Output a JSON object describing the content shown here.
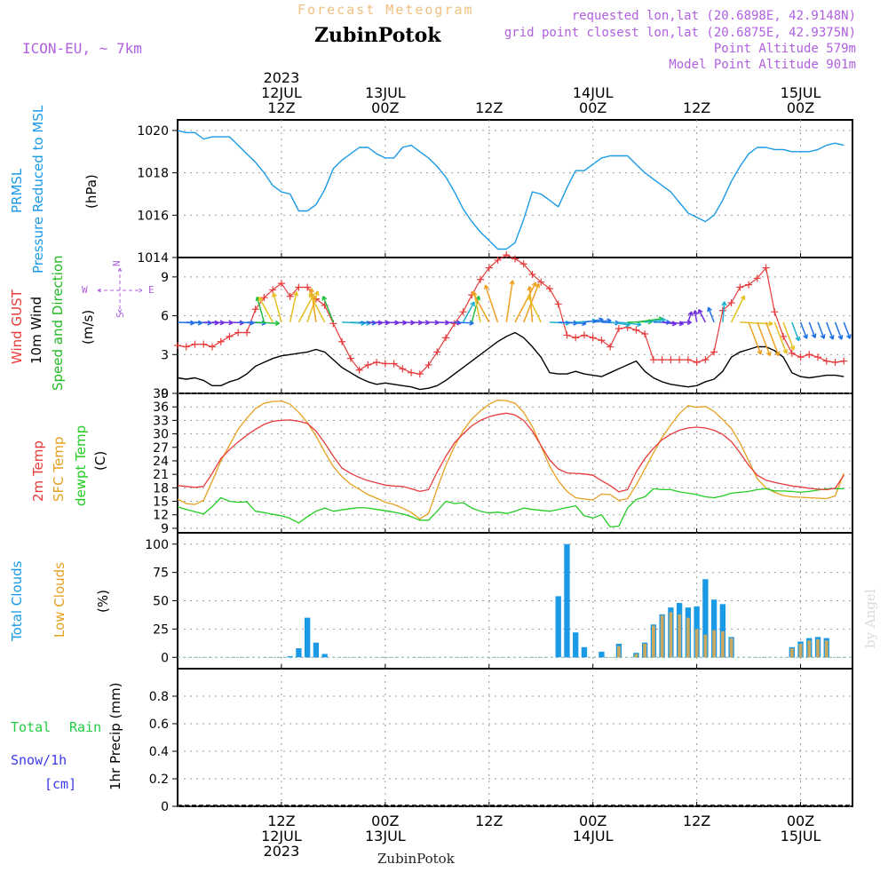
{
  "header": {
    "forecast_title": "Forecast Meteogram",
    "station": "ZubinPotok",
    "model": "ICON-EU, ~ 7km",
    "requested": "requested lon,lat (20.6898E, 42.9148N)",
    "closest": "grid point closest lon,lat (20.6875E, 42.9375N)",
    "point_alt": "Point Altitude 579m",
    "model_alt": "Model Point Altitude 901m",
    "credit": "by Angel",
    "footer_station": "ZubinPotok"
  },
  "time_axis": {
    "start_hour": 0,
    "end_hour": 78,
    "top_labels": [
      {
        "hour": 12,
        "lines": [
          "2023",
          "12JUL",
          "12Z"
        ]
      },
      {
        "hour": 24,
        "lines": [
          "13JUL",
          "00Z"
        ]
      },
      {
        "hour": 36,
        "lines": [
          "12Z"
        ]
      },
      {
        "hour": 48,
        "lines": [
          "14JUL",
          "00Z"
        ]
      },
      {
        "hour": 60,
        "lines": [
          "12Z"
        ]
      },
      {
        "hour": 72,
        "lines": [
          "15JUL",
          "00Z"
        ]
      }
    ],
    "bottom_labels": [
      {
        "hour": 12,
        "lines": [
          "12Z",
          "12JUL",
          "2023"
        ]
      },
      {
        "hour": 24,
        "lines": [
          "00Z",
          "13JUL"
        ]
      },
      {
        "hour": 36,
        "lines": [
          "12Z"
        ]
      },
      {
        "hour": 48,
        "lines": [
          "00Z",
          "14JUL"
        ]
      },
      {
        "hour": 60,
        "lines": [
          "12Z"
        ]
      },
      {
        "hour": 72,
        "lines": [
          "00Z",
          "15JUL"
        ]
      }
    ]
  },
  "colors": {
    "pressure": "#1a9ae6",
    "gust": "#e83a3a",
    "wind": "#000000",
    "direction": "#22bb22",
    "temp": "#e83a3a",
    "sfc_temp": "#e6a020",
    "dewpt": "#22cc22",
    "total_clouds": "#1a9ae6",
    "low_clouds": "#c9a860",
    "rain": "#22cc44",
    "snow": "#3a3ae6",
    "label_purple": "#b060e0",
    "title_orange": "#f0c080"
  },
  "chart_data": [
    {
      "type": "line",
      "name": "pressure",
      "labels": [
        "PRMSL",
        "Pressure Reduced to MSL",
        "(hPa)"
      ],
      "ylim": [
        1014,
        1020.5
      ],
      "yticks": [
        1014,
        1016,
        1018,
        1020
      ],
      "x": [
        0,
        1,
        2,
        3,
        4,
        5,
        6,
        7,
        8,
        9,
        10,
        11,
        12,
        13,
        14,
        15,
        16,
        17,
        18,
        19,
        20,
        21,
        22,
        23,
        24,
        25,
        26,
        27,
        28,
        29,
        30,
        31,
        32,
        33,
        34,
        35,
        36,
        37,
        38,
        39,
        40,
        41,
        42,
        43,
        44,
        45,
        46,
        47,
        48,
        49,
        50,
        51,
        52,
        53,
        54,
        55,
        56,
        57,
        58,
        59,
        60,
        61,
        62,
        63,
        64,
        65,
        66,
        67,
        68,
        69,
        70,
        71,
        72,
        73,
        74,
        75,
        76,
        77
      ],
      "values": [
        1020,
        1019.9,
        1019.9,
        1019.6,
        1019.7,
        1019.7,
        1019.7,
        1019.3,
        1018.9,
        1018.5,
        1018,
        1017.4,
        1017.1,
        1017,
        1016.2,
        1016.2,
        1016.5,
        1017.2,
        1018.2,
        1018.6,
        1018.9,
        1019.2,
        1019.2,
        1018.9,
        1018.7,
        1018.7,
        1019.2,
        1019.3,
        1019,
        1018.7,
        1018.3,
        1017.8,
        1017.1,
        1016.3,
        1015.7,
        1015.2,
        1014.8,
        1014.4,
        1014.4,
        1014.7,
        1015.8,
        1017.1,
        1017,
        1016.7,
        1016.4,
        1017.3,
        1018.1,
        1018.1,
        1018.4,
        1018.7,
        1018.8,
        1018.8,
        1018.8,
        1018.4,
        1018,
        1017.7,
        1017.4,
        1017.1,
        1016.6,
        1016.1,
        1015.9,
        1015.7,
        1016,
        1016.7,
        1017.6,
        1018.3,
        1018.9,
        1019.2,
        1019.2,
        1019.1,
        1019.1,
        1019,
        1019,
        1019,
        1019.1,
        1019.3,
        1019.4,
        1019.3
      ]
    },
    {
      "type": "line",
      "name": "wind",
      "labels": [
        "Wind GUST",
        "10m Wind",
        "Speed and Direction",
        "(m/s)"
      ],
      "compass": [
        "N",
        "S",
        "W",
        "E"
      ],
      "ylim": [
        0,
        10.5
      ],
      "yticks": [
        0,
        3,
        6,
        9
      ],
      "x": [
        0,
        1,
        2,
        3,
        4,
        5,
        6,
        7,
        8,
        9,
        10,
        11,
        12,
        13,
        14,
        15,
        16,
        17,
        18,
        19,
        20,
        21,
        22,
        23,
        24,
        25,
        26,
        27,
        28,
        29,
        30,
        31,
        32,
        33,
        34,
        35,
        36,
        37,
        38,
        39,
        40,
        41,
        42,
        43,
        44,
        45,
        46,
        47,
        48,
        49,
        50,
        51,
        52,
        53,
        54,
        55,
        56,
        57,
        58,
        59,
        60,
        61,
        62,
        63,
        64,
        65,
        66,
        67,
        68,
        69,
        70,
        71,
        72,
        73,
        74,
        75,
        76,
        77
      ],
      "series": [
        {
          "name": "Wind GUST",
          "values": [
            3.7,
            3.6,
            3.8,
            3.8,
            3.6,
            4,
            4.4,
            4.7,
            4.7,
            6.5,
            7.4,
            8,
            8.5,
            7.5,
            8.2,
            8.2,
            7.3,
            6.8,
            5.4,
            4,
            2.7,
            1.8,
            2.2,
            2.4,
            2.3,
            2.3,
            1.9,
            1.6,
            1.5,
            2.2,
            3.2,
            4.3,
            5.4,
            6.3,
            7.6,
            8.8,
            9.7,
            10.3,
            10.7,
            10.4,
            10,
            9.2,
            8.6,
            8.1,
            6.9,
            4.5,
            4.3,
            4.5,
            4.3,
            4.1,
            3.6,
            5,
            5.1,
            4.9,
            4.6,
            2.6,
            2.6,
            2.6,
            2.6,
            2.6,
            2.4,
            2.6,
            3.2,
            6.4,
            7,
            8.2,
            8.4,
            8.9,
            9.7,
            6.3,
            4.4,
            3.1,
            2.8,
            3,
            2.8,
            2.5,
            2.4,
            2.5
          ]
        },
        {
          "name": "10m Wind",
          "values": [
            1.2,
            1.1,
            1.2,
            1,
            0.6,
            0.6,
            0.9,
            1.1,
            1.5,
            2.1,
            2.4,
            2.7,
            2.9,
            3,
            3.1,
            3.2,
            3.4,
            3.2,
            2.6,
            2,
            1.6,
            1.2,
            0.9,
            0.7,
            0.8,
            0.7,
            0.6,
            0.5,
            0.3,
            0.4,
            0.6,
            1,
            1.5,
            2,
            2.5,
            3,
            3.5,
            4,
            4.4,
            4.7,
            4.3,
            3.6,
            2.8,
            1.6,
            1.5,
            1.5,
            1.7,
            1.5,
            1.4,
            1.3,
            1.6,
            1.9,
            2.2,
            2.5,
            1.7,
            1.2,
            0.9,
            0.7,
            0.6,
            0.5,
            0.6,
            0.9,
            1.1,
            1.7,
            2.8,
            3.2,
            3.4,
            3.6,
            3.6,
            3.3,
            2.8,
            1.6,
            1.3,
            1.2,
            1.3,
            1.4,
            1.4,
            1.3
          ]
        }
      ],
      "arrows_every_hours": 1
    },
    {
      "type": "line",
      "name": "temperature",
      "labels": [
        "2m Temp",
        "SFC Temp",
        "dewpt Temp",
        "(C)"
      ],
      "ylim": [
        8,
        39
      ],
      "yticks": [
        9,
        12,
        15,
        18,
        21,
        24,
        27,
        30,
        33,
        36,
        39
      ],
      "x": [
        0,
        1,
        2,
        3,
        4,
        5,
        6,
        7,
        8,
        9,
        10,
        11,
        12,
        13,
        14,
        15,
        16,
        17,
        18,
        19,
        20,
        21,
        22,
        23,
        24,
        25,
        26,
        27,
        28,
        29,
        30,
        31,
        32,
        33,
        34,
        35,
        36,
        37,
        38,
        39,
        40,
        41,
        42,
        43,
        44,
        45,
        46,
        47,
        48,
        49,
        50,
        51,
        52,
        53,
        54,
        55,
        56,
        57,
        58,
        59,
        60,
        61,
        62,
        63,
        64,
        65,
        66,
        67,
        68,
        69,
        70,
        71,
        72,
        73,
        74,
        75,
        76,
        77
      ],
      "series": [
        {
          "name": "2m Temp",
          "values": [
            18.5,
            18.3,
            18.1,
            18.3,
            21.2,
            24.5,
            26.5,
            28.2,
            29.7,
            31,
            32.1,
            32.8,
            33,
            33.1,
            32.8,
            32.3,
            30.6,
            28,
            25,
            22.4,
            21.2,
            20.3,
            19.6,
            19.1,
            18.6,
            18.4,
            18.3,
            17.8,
            17.2,
            17.6,
            21.5,
            25,
            28,
            30,
            31.8,
            33,
            33.8,
            34.3,
            34.6,
            34.2,
            33,
            30.6,
            27.4,
            24.2,
            22.2,
            21.3,
            21.2,
            21.1,
            20.8,
            19.6,
            18.5,
            17.1,
            17.6,
            21.5,
            24.5,
            26.8,
            28.7,
            29.9,
            30.8,
            31.3,
            31.5,
            31.3,
            30.8,
            29.9,
            28.3,
            25.8,
            23,
            20.8,
            19.7,
            19.2,
            18.8,
            18.4,
            18.2,
            17.9,
            17.7,
            17.6,
            17.9,
            20.8
          ]
        },
        {
          "name": "SFC Temp",
          "values": [
            15.5,
            14.5,
            14.3,
            15.2,
            19.5,
            24,
            27.5,
            31,
            33.5,
            35.6,
            36.8,
            37.2,
            37.3,
            36.6,
            34.8,
            32.5,
            29.5,
            26,
            22.7,
            20.5,
            18.8,
            17.7,
            16.5,
            15.7,
            14.8,
            14.3,
            13.5,
            12.5,
            11.1,
            12.3,
            17.8,
            23,
            27.2,
            30.7,
            33.3,
            35.1,
            36.6,
            37.5,
            37.4,
            36.8,
            34.8,
            31.6,
            27.3,
            22.8,
            19.6,
            17.2,
            15.8,
            15.5,
            15.3,
            16.6,
            16.5,
            15.2,
            15.6,
            18.6,
            22.2,
            25.8,
            29.2,
            32,
            34.5,
            36.3,
            35.9,
            36.1,
            35,
            33.2,
            31.2,
            28,
            24,
            20,
            18,
            17,
            16.3,
            16,
            15.9,
            15.8,
            15.7,
            15.6,
            16.2,
            21.2
          ]
        },
        {
          "name": "dewpt Temp",
          "values": [
            13.8,
            13.2,
            12.7,
            12.2,
            13.8,
            15.8,
            15,
            14.8,
            14.9,
            12.8,
            12.5,
            12.1,
            11.8,
            11.2,
            10.2,
            11.6,
            12.8,
            13.5,
            12.8,
            13.1,
            13.4,
            13.6,
            13.5,
            13.2,
            12.9,
            12.6,
            12.2,
            11.6,
            10.8,
            10.8,
            12.8,
            15,
            14.5,
            14.7,
            13.5,
            12.8,
            12.4,
            12.6,
            12.3,
            12.8,
            13.5,
            13.2,
            13,
            12.8,
            13.2,
            13.6,
            14,
            11.8,
            11.3,
            12,
            9.3,
            9.5,
            13.5,
            15.4,
            16,
            17.8,
            17.6,
            17.6,
            17.1,
            16.8,
            16.5,
            16,
            15.8,
            16.2,
            16.8,
            17,
            17.2,
            17.6,
            17.8,
            17.3,
            17.3,
            17.2,
            17,
            17.2,
            17.5,
            17.8,
            17.8,
            17.8
          ]
        }
      ]
    },
    {
      "type": "bar",
      "name": "clouds",
      "labels": [
        "Total Clouds",
        "Low Clouds",
        "(%)"
      ],
      "ylim": [
        -10,
        110
      ],
      "yticks": [
        0,
        25,
        50,
        75,
        100
      ],
      "x": [
        0,
        1,
        2,
        3,
        4,
        5,
        6,
        7,
        8,
        9,
        10,
        11,
        12,
        13,
        14,
        15,
        16,
        17,
        18,
        19,
        20,
        21,
        22,
        23,
        24,
        25,
        26,
        27,
        28,
        29,
        30,
        31,
        32,
        33,
        34,
        35,
        36,
        37,
        38,
        39,
        40,
        41,
        42,
        43,
        44,
        45,
        46,
        47,
        48,
        49,
        50,
        51,
        52,
        53,
        54,
        55,
        56,
        57,
        58,
        59,
        60,
        61,
        62,
        63,
        64,
        65,
        66,
        67,
        68,
        69,
        70,
        71,
        72,
        73,
        74,
        75,
        76,
        77
      ],
      "series": [
        {
          "name": "Total Clouds",
          "values": [
            0,
            0,
            0,
            0,
            0,
            0,
            0,
            0,
            0,
            0,
            0,
            0,
            0,
            1,
            8,
            35,
            13,
            3,
            0,
            0,
            0,
            0,
            0,
            0,
            0,
            0,
            0,
            0,
            0,
            0,
            0,
            0,
            0,
            0,
            0,
            0,
            0,
            0,
            0,
            0,
            0,
            0,
            0,
            0,
            54,
            100,
            22,
            9,
            0,
            5,
            0,
            12,
            0,
            4,
            13,
            29,
            38,
            44,
            48,
            44,
            45,
            69,
            51,
            47,
            18,
            0,
            0,
            0,
            0,
            0,
            0,
            9,
            14,
            17,
            18,
            17,
            0,
            0
          ]
        },
        {
          "name": "Low Clouds",
          "values": [
            0,
            0,
            0,
            0,
            0,
            0,
            0,
            0,
            0,
            0,
            0,
            0,
            0,
            0,
            0,
            0,
            0,
            0,
            0,
            0,
            0,
            0,
            0,
            0,
            0,
            0,
            0,
            0,
            0,
            0,
            0,
            0,
            0,
            0,
            0,
            0,
            0,
            0,
            0,
            0,
            0,
            0,
            0,
            0,
            0,
            0,
            0,
            0,
            0,
            0,
            0,
            10,
            0,
            3,
            12,
            28,
            37,
            40,
            38,
            35,
            25,
            20,
            24,
            23,
            17,
            0,
            0,
            0,
            0,
            0,
            0,
            8,
            12,
            15,
            16,
            15,
            0,
            0
          ]
        }
      ]
    },
    {
      "type": "line",
      "name": "precipitation",
      "labels": [
        "Total",
        "Rain",
        "Snow/1h",
        "[cm]",
        "1hr Precip (mm)"
      ],
      "ylim": [
        0,
        1
      ],
      "yticks": [
        0,
        0.2,
        0.4,
        0.6,
        0.8
      ],
      "ytick_labels": [
        "0",
        "0.2",
        "0.4",
        "0.6",
        "0.8"
      ],
      "x": [
        0,
        77
      ],
      "values": [
        0,
        0
      ]
    }
  ]
}
